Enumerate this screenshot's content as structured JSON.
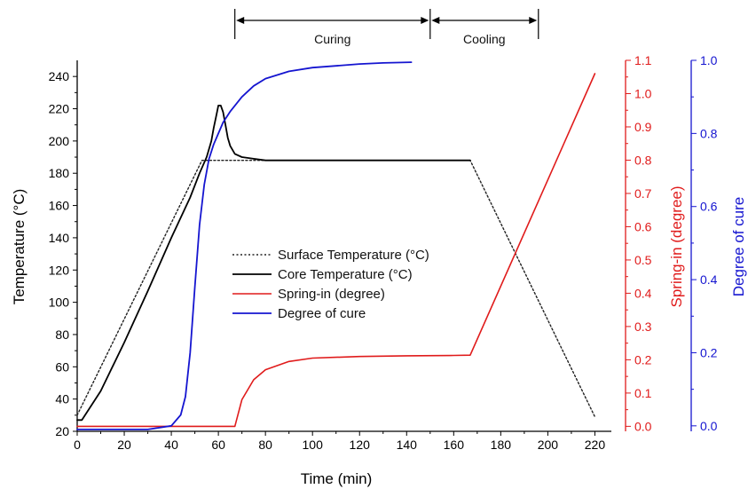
{
  "chart_data": {
    "type": "line",
    "title": "",
    "xlabel": "Time (min)",
    "ylabel": "Temperature (°C)",
    "y2label": "Spring-in (degree)",
    "y3label": "Degree of cure",
    "xlim": [
      0,
      227
    ],
    "ylim": [
      20,
      250
    ],
    "y2lim": [
      -0.015,
      1.1
    ],
    "y3lim": [
      -0.015,
      1.0
    ],
    "xticks": [
      0,
      20,
      40,
      60,
      80,
      100,
      120,
      140,
      160,
      180,
      200,
      220
    ],
    "yticks": [
      20,
      40,
      60,
      80,
      100,
      120,
      140,
      160,
      180,
      200,
      220,
      240
    ],
    "y2ticks": [
      0.0,
      0.1,
      0.2,
      0.3,
      0.4,
      0.5,
      0.6,
      0.7,
      0.8,
      0.9,
      1.0,
      1.1
    ],
    "y2ticklabels": [
      "0.0",
      "0.1",
      "0.2",
      "0.3",
      "0.4",
      "0.5",
      "0.6",
      "0.7",
      "0.8",
      "0.9",
      "1.0",
      "1.1"
    ],
    "y3ticks": [
      0.0,
      0.2,
      0.4,
      0.6,
      0.8,
      1.0
    ],
    "y3ticklabels": [
      "0.0",
      "0.2",
      "0.4",
      "0.6",
      "0.8",
      "1.0"
    ],
    "grid": false,
    "legend_position": "center",
    "colors": {
      "surface": "#222222",
      "core": "#000000",
      "spring": "#e01b1b",
      "cure": "#1515d0",
      "axis": "#000000"
    },
    "phases": [
      {
        "label": "Curing",
        "x_start": 67,
        "x_end": 150
      },
      {
        "label": "Cooling",
        "x_start": 150,
        "x_end": 196
      }
    ],
    "series": [
      {
        "name": "Surface Temperature (°C)",
        "axis": "temperature",
        "style": "dotted",
        "x": [
          0,
          53,
          167,
          220
        ],
        "y": [
          30,
          188,
          188,
          29
        ]
      },
      {
        "name": "Core Temperature (°C)",
        "axis": "temperature",
        "style": "solid",
        "x": [
          0,
          2,
          10,
          20,
          30,
          40,
          48,
          52,
          55,
          57,
          58,
          59,
          60,
          61,
          62,
          63,
          64,
          65,
          67,
          70,
          75,
          80,
          90,
          100,
          120,
          140,
          160,
          167
        ],
        "y": [
          27,
          27,
          45,
          75,
          107,
          140,
          165,
          180,
          190,
          200,
          208,
          215,
          222,
          222,
          218,
          210,
          202,
          197,
          192,
          190,
          189,
          188,
          188,
          188,
          188,
          188,
          188,
          188
        ]
      },
      {
        "name": "Spring-in (degree)",
        "axis": "spring",
        "style": "solid",
        "x": [
          0,
          67,
          70,
          75,
          80,
          90,
          100,
          120,
          140,
          160,
          167,
          220
        ],
        "y": [
          0.0,
          0.0,
          0.08,
          0.14,
          0.17,
          0.195,
          0.205,
          0.21,
          0.212,
          0.213,
          0.214,
          1.06
        ]
      },
      {
        "name": "Degree of cure",
        "axis": "cure",
        "style": "solid",
        "x": [
          0,
          10,
          20,
          30,
          40,
          44,
          46,
          48,
          50,
          52,
          54,
          56,
          58,
          60,
          62,
          65,
          70,
          75,
          80,
          90,
          100,
          110,
          120,
          130,
          142
        ],
        "y": [
          -0.01,
          -0.01,
          -0.01,
          -0.01,
          0.0,
          0.03,
          0.08,
          0.2,
          0.38,
          0.55,
          0.66,
          0.73,
          0.77,
          0.8,
          0.83,
          0.86,
          0.9,
          0.93,
          0.95,
          0.97,
          0.98,
          0.985,
          0.99,
          0.993,
          0.995
        ]
      }
    ]
  }
}
